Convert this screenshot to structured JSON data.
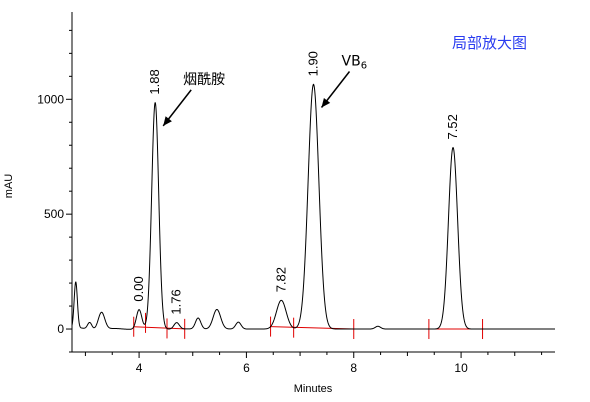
{
  "chart_data": {
    "type": "line",
    "xlabel": "Minutes",
    "ylabel": "mAU",
    "xlim": [
      2.75,
      11.75
    ],
    "ylim": [
      -100,
      1380
    ],
    "x_ticks": [
      4,
      6,
      8,
      10
    ],
    "y_ticks": [
      0,
      500,
      1000
    ],
    "grid": false,
    "note_text": "局部放大图",
    "annotations": [
      {
        "id": "nicotinamide",
        "text": "烟酰胺",
        "sub": "",
        "x": 4.3,
        "y": 980
      },
      {
        "id": "vb6",
        "text": "VB",
        "sub": "6",
        "x": 7.25,
        "y": 1060
      }
    ],
    "peaks": [
      {
        "label": "0.00",
        "rt": 4.0,
        "height": 85,
        "width": 0.05
      },
      {
        "label": "1.88",
        "rt": 4.3,
        "height": 985,
        "width": 0.065
      },
      {
        "label": "1.76",
        "rt": 4.7,
        "height": 28,
        "width": 0.05
      },
      {
        "label": "7.82",
        "rt": 6.65,
        "height": 125,
        "width": 0.09
      },
      {
        "label": "1.90",
        "rt": 7.25,
        "height": 1065,
        "width": 0.1
      },
      {
        "label": "7.52",
        "rt": 9.85,
        "height": 790,
        "width": 0.085
      }
    ],
    "minor_peaks": [
      {
        "rt": 2.82,
        "height": 200,
        "width": 0.03
      },
      {
        "rt": 3.3,
        "height": 75,
        "width": 0.06
      },
      {
        "rt": 3.08,
        "height": 30,
        "width": 0.04
      },
      {
        "rt": 5.1,
        "height": 48,
        "width": 0.05
      },
      {
        "rt": 5.45,
        "height": 85,
        "width": 0.07
      },
      {
        "rt": 5.85,
        "height": 30,
        "width": 0.05
      },
      {
        "rt": 8.45,
        "height": 12,
        "width": 0.05
      }
    ],
    "integration_markers": [
      3.9,
      4.12,
      4.52,
      4.85,
      6.45,
      6.88,
      8.0,
      9.4,
      10.4
    ],
    "integration_baselines": [
      [
        3.9,
        4.85
      ],
      [
        6.45,
        8.0
      ],
      [
        9.4,
        10.4
      ]
    ],
    "colors": {
      "trace": "#000000",
      "integration": "#e00000",
      "inset": "#2a3cf0",
      "arrow": "#000000"
    }
  }
}
